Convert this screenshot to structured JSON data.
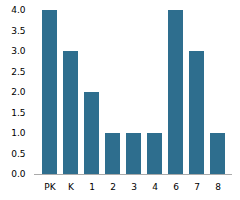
{
  "chart_data": {
    "type": "bar",
    "categories": [
      "PK",
      "K",
      "1",
      "2",
      "3",
      "4",
      "6",
      "7",
      "8"
    ],
    "values": [
      4,
      3,
      2,
      1,
      1,
      1,
      4,
      3,
      1
    ],
    "color": "#2e6e8e",
    "ylim": [
      0,
      4
    ],
    "yticks": [
      {
        "value": 0,
        "label": "0.0"
      },
      0.5,
      {
        "value": 1,
        "label": "1.0"
      },
      1.5,
      {
        "value": 2,
        "label": "2.0"
      },
      2.5,
      {
        "value": 3,
        "label": "3.0"
      },
      3.5,
      {
        "value": 4,
        "label": "4.0"
      }
    ],
    "grid": false
  }
}
